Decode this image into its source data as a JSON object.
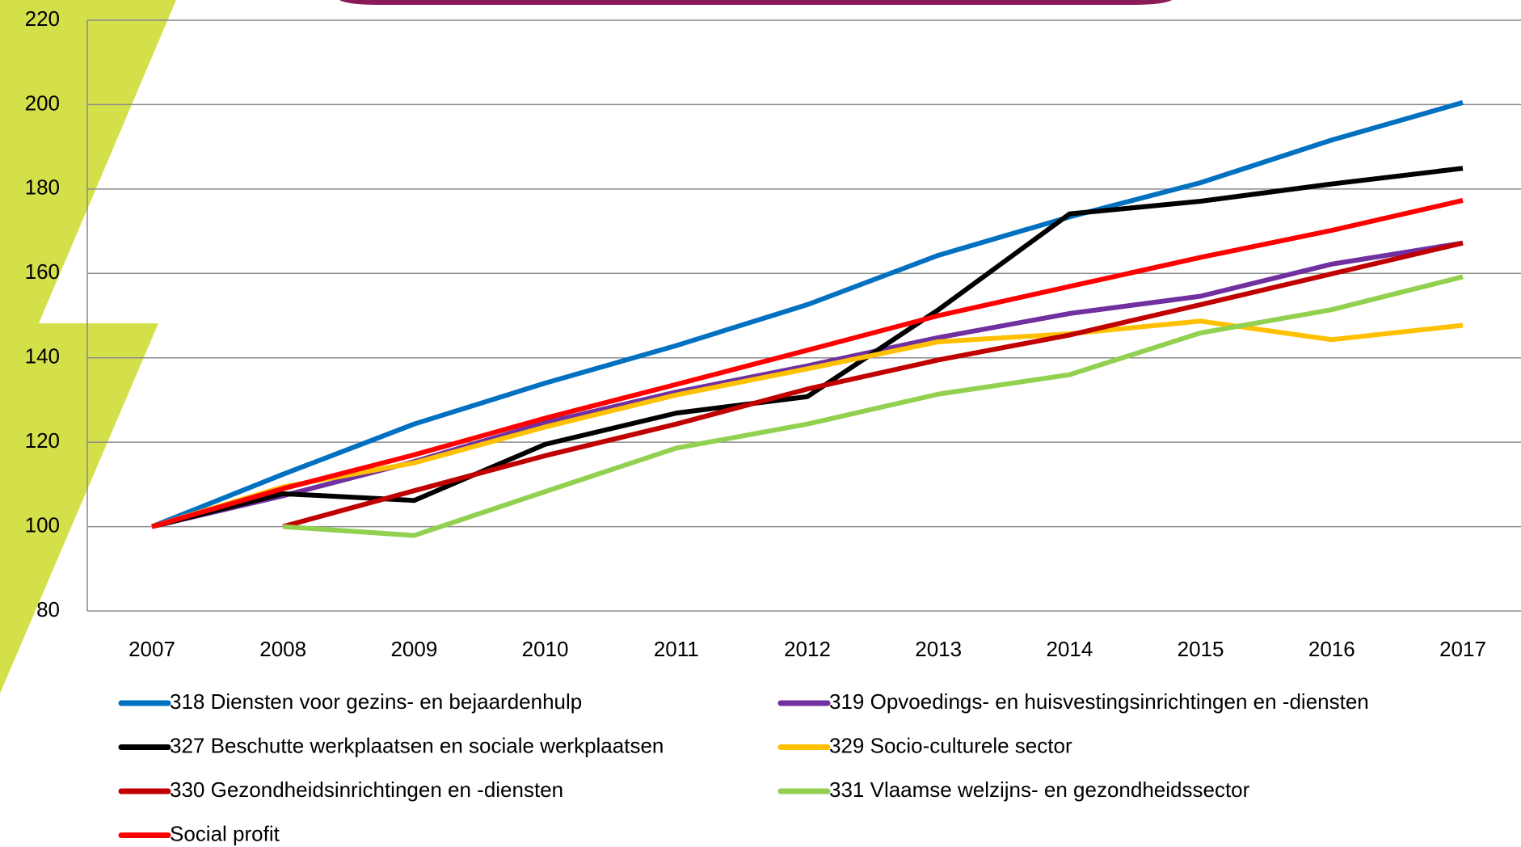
{
  "chart_data": {
    "type": "line",
    "x": [
      "2007",
      "2008",
      "2009",
      "2010",
      "2011",
      "2012",
      "2013",
      "2014",
      "2015",
      "2016",
      "2017"
    ],
    "ylim": [
      80,
      220
    ],
    "yticks": [
      80,
      100,
      120,
      140,
      160,
      180,
      200,
      220
    ],
    "grid": true,
    "legend": "bottom",
    "series": [
      {
        "name": "318 Diensten voor gezins- en bejaardenhulp",
        "color": "#0070c0",
        "values": [
          100,
          112.4,
          124.3,
          134,
          142.9,
          152.6,
          164.3,
          173.4,
          181.5,
          191.6,
          200.5
        ]
      },
      {
        "name": "319 Opvoedings- en huisvestingsinrichtingen en -diensten",
        "color": "#7030a0",
        "values": [
          100,
          107.3,
          115.4,
          124.6,
          131.9,
          138.1,
          144.8,
          150.5,
          154.6,
          162.2,
          167.2
        ]
      },
      {
        "name": "327 Beschutte werkplaatsen en sociale werkplaatsen",
        "color": "#000000",
        "values": [
          100,
          107.8,
          106.2,
          119.5,
          126.9,
          130.8,
          151.4,
          174.1,
          177.1,
          181.2,
          184.9
        ]
      },
      {
        "name": "329 Socio-culturele sector",
        "color": "#ffc000",
        "values": [
          100,
          109.4,
          115.1,
          123.6,
          131.2,
          137.4,
          143.8,
          145.7,
          148.7,
          144.3,
          147.7
        ]
      },
      {
        "name": "330 Gezondheidsinrichtingen en -diensten",
        "color": "#c00000",
        "values": [
          null,
          100,
          108.5,
          116.8,
          124.3,
          132.6,
          139.5,
          145.4,
          152.6,
          159.9,
          167.2
        ]
      },
      {
        "name": "331 Vlaamse welzijns- en gezondheidssector",
        "color": "#92d050",
        "values": [
          null,
          100,
          97.9,
          108.3,
          118.6,
          124.3,
          131.4,
          136,
          145.9,
          151.4,
          159.2
        ]
      },
      {
        "name": "Social profit",
        "color": "#ff0000",
        "values": [
          100,
          109,
          117,
          125.7,
          133.7,
          141.8,
          150,
          156.9,
          163.8,
          170.2,
          177.3
        ]
      }
    ]
  }
}
